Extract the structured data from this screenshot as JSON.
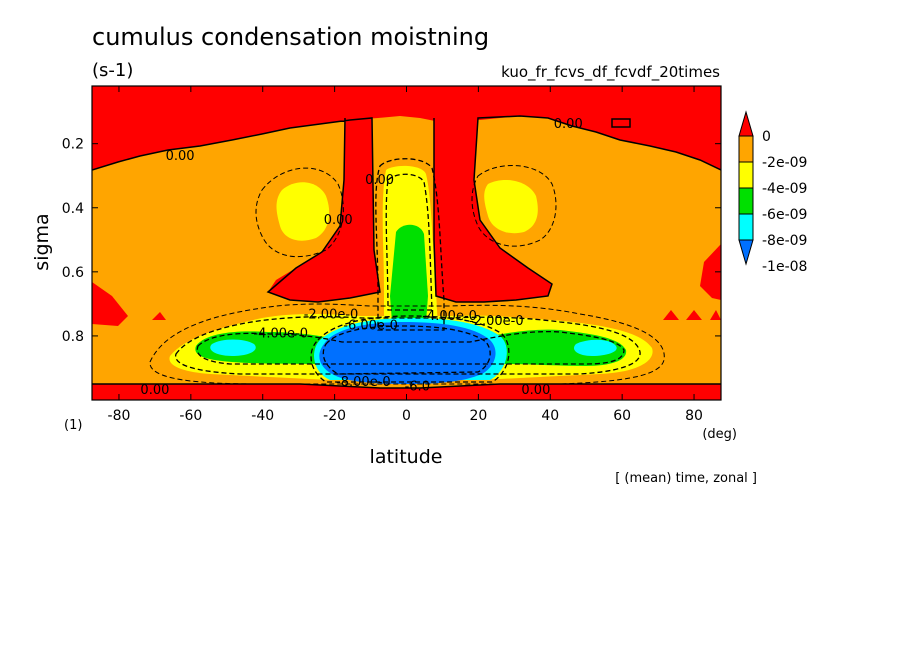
{
  "header": {
    "title": "cumulus condensation moistning",
    "units": "(s-1)",
    "experiment": "kuo_fr_fcvs_df_fcvdf_20times"
  },
  "footer": {
    "x_unit_factor": "(1)",
    "x_unit": "(deg)",
    "averaging_note": "[ (mean) time, zonal ]"
  },
  "chart_data": {
    "type": "heatmap",
    "title": "cumulus condensation moistning",
    "xlabel": "latitude",
    "ylabel": "sigma",
    "xlim": [
      -87.5,
      87.5
    ],
    "ylim": [
      1.0,
      0.02
    ],
    "x_ticks": [
      "-80",
      "-60",
      "-40",
      "-20",
      "0",
      "20",
      "40",
      "60",
      "80"
    ],
    "y_ticks": [
      "0.2",
      "0.4",
      "0.6",
      "0.8"
    ],
    "x_tick_values": [
      -80,
      -60,
      -40,
      -20,
      0,
      20,
      40,
      60,
      80
    ],
    "y_tick_values": [
      0.2,
      0.4,
      0.6,
      0.8
    ],
    "colorbar": {
      "labels": [
        "0",
        "-2e-09",
        "-4e-09",
        "-6e-09",
        "-8e-09",
        "-1e-08"
      ],
      "colors": [
        "#ff0000",
        "#ffa500",
        "#ffff00",
        "#00e000",
        "#00ffff",
        "#0070ff"
      ]
    },
    "contour_labels": [
      {
        "text": "0.00",
        "lat": -63,
        "sigma": 0.235
      },
      {
        "text": "0.00",
        "lat": 45,
        "sigma": 0.135
      },
      {
        "text": "0.00",
        "lat": -7.5,
        "sigma": 0.31
      },
      {
        "text": "0.00",
        "lat": -19,
        "sigma": 0.435
      },
      {
        "text": "0.00",
        "lat": -70,
        "sigma": 0.965
      },
      {
        "text": "0.00",
        "lat": 36,
        "sigma": 0.965
      },
      {
        "text": "-2.00e-0",
        "lat": -21,
        "sigma": 0.73
      },
      {
        "text": "-2.00e-0",
        "lat": 25,
        "sigma": 0.75
      },
      {
        "text": "-4.00e-0",
        "lat": -35,
        "sigma": 0.79
      },
      {
        "text": "-4.00e-0",
        "lat": 12,
        "sigma": 0.735
      },
      {
        "text": "-6.00e-0",
        "lat": -10,
        "sigma": 0.765
      },
      {
        "text": "-8.00e-0",
        "lat": -12,
        "sigma": 0.94
      },
      {
        "text": "-6.0",
        "lat": 3,
        "sigma": 0.955
      }
    ]
  }
}
